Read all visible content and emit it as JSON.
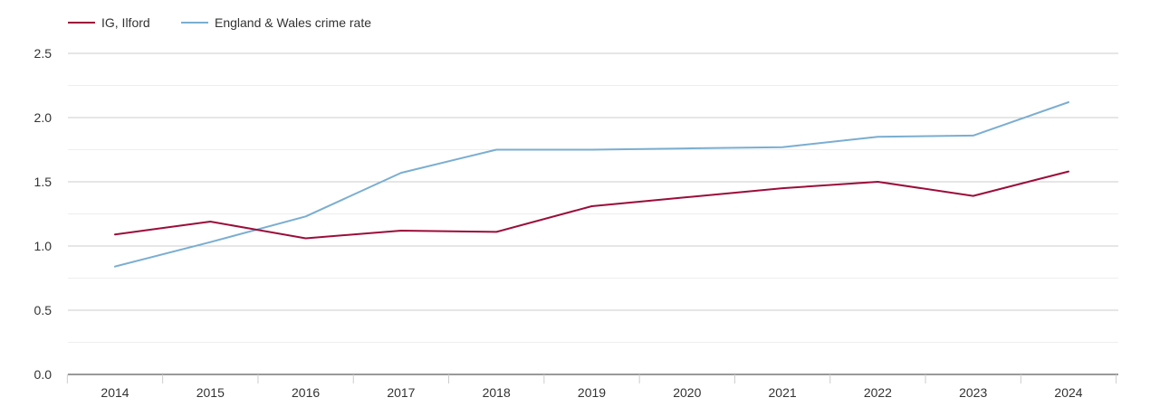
{
  "chart_data": {
    "type": "line",
    "title": "",
    "xlabel": "",
    "ylabel": "",
    "x": [
      "2014",
      "2015",
      "2016",
      "2017",
      "2018",
      "2019",
      "2020",
      "2021",
      "2022",
      "2023",
      "2024"
    ],
    "ylim": [
      0,
      2.5
    ],
    "yticks": [
      "0.0",
      "0.5",
      "1.0",
      "1.5",
      "2.0",
      "2.5"
    ],
    "ytick_values": [
      0,
      0.5,
      1.0,
      1.5,
      2.0,
      2.5
    ],
    "minor_gridlines": [
      0.25,
      0.75,
      1.25,
      1.75,
      2.25
    ],
    "grid": true,
    "legend_position": "top-left",
    "series": [
      {
        "name": "IG, Ilford",
        "color": "#9b0d3a",
        "values": [
          1.09,
          1.19,
          1.06,
          1.12,
          1.11,
          1.31,
          1.38,
          1.45,
          1.5,
          1.39,
          1.58
        ]
      },
      {
        "name": "England & Wales crime rate",
        "color": "#7aaed0",
        "values": [
          0.84,
          1.03,
          1.23,
          1.57,
          1.75,
          1.75,
          1.76,
          1.77,
          1.85,
          1.86,
          2.12
        ]
      }
    ]
  }
}
